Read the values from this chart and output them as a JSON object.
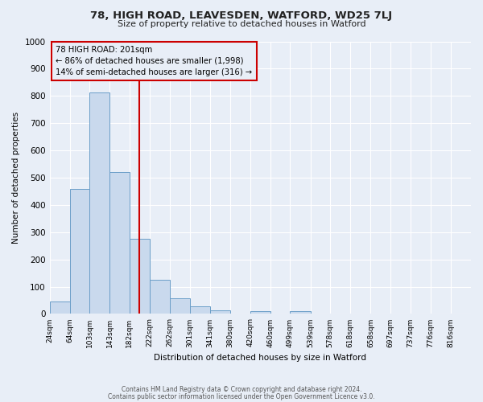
{
  "title": "78, HIGH ROAD, LEAVESDEN, WATFORD, WD25 7LJ",
  "subtitle": "Size of property relative to detached houses in Watford",
  "xlabel": "Distribution of detached houses by size in Watford",
  "ylabel": "Number of detached properties",
  "bar_labels": [
    "24sqm",
    "64sqm",
    "103sqm",
    "143sqm",
    "182sqm",
    "222sqm",
    "262sqm",
    "301sqm",
    "341sqm",
    "380sqm",
    "420sqm",
    "460sqm",
    "499sqm",
    "539sqm",
    "578sqm",
    "618sqm",
    "658sqm",
    "697sqm",
    "737sqm",
    "776sqm",
    "816sqm"
  ],
  "bar_values": [
    45,
    460,
    812,
    522,
    275,
    125,
    57,
    27,
    12,
    0,
    10,
    0,
    10,
    0,
    0,
    0,
    0,
    0,
    0,
    0,
    0
  ],
  "bar_color": "#c9d9ed",
  "bar_edgecolor": "#6b9ec8",
  "vline_x": 201,
  "vline_label": "78 HIGH ROAD: 201sqm",
  "annotation_line1": "← 86% of detached houses are smaller (1,998)",
  "annotation_line2": "14% of semi-detached houses are larger (316) →",
  "box_color": "#cc0000",
  "ylim": [
    0,
    1000
  ],
  "yticks": [
    0,
    100,
    200,
    300,
    400,
    500,
    600,
    700,
    800,
    900,
    1000
  ],
  "bg_color": "#e8eef7",
  "grid_color": "#ffffff",
  "footer1": "Contains HM Land Registry data © Crown copyright and database right 2024.",
  "footer2": "Contains public sector information licensed under the Open Government Licence v3.0.",
  "bin_starts": [
    24,
    64,
    103,
    143,
    182,
    222,
    262,
    301,
    341,
    380,
    420,
    460,
    499,
    539,
    578,
    618,
    658,
    697,
    737,
    776,
    816
  ]
}
